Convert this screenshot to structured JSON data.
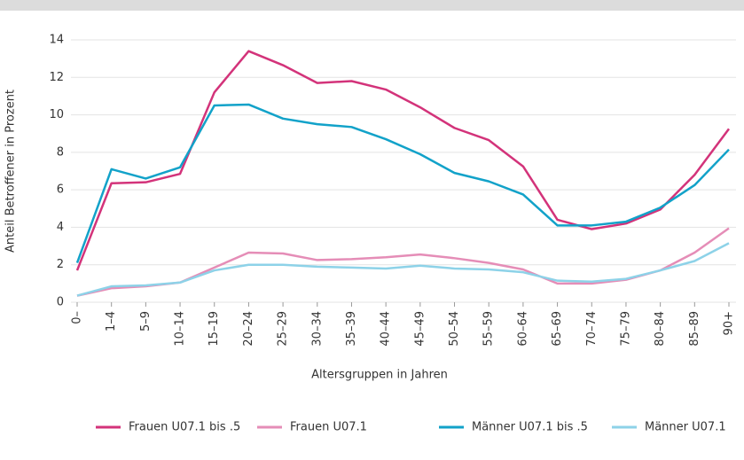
{
  "chart_data": {
    "type": "line",
    "xlabel": "Altersgruppen in Jahren",
    "ylabel": "Anteil Betroffener in Prozent",
    "categories": [
      "0–",
      "1–4",
      "5–9",
      "10–14",
      "15–19",
      "20–24",
      "25–29",
      "30–34",
      "35–39",
      "40–44",
      "45–49",
      "50–54",
      "55–59",
      "60–64",
      "65–69",
      "70–74",
      "75–79",
      "80–84",
      "85–89",
      "90+"
    ],
    "series": [
      {
        "name": "Frauen U07.1 bis .5",
        "color": "#d3337a",
        "values": [
          1.7,
          6.35,
          6.4,
          6.85,
          11.2,
          13.4,
          12.65,
          11.7,
          11.8,
          11.35,
          10.4,
          9.3,
          8.65,
          7.25,
          4.4,
          3.9,
          4.2,
          4.95,
          6.8,
          9.25
        ]
      },
      {
        "name": "Frauen U07.1",
        "color": "#e58db7",
        "values": [
          0.35,
          0.75,
          0.85,
          1.05,
          1.85,
          2.65,
          2.6,
          2.25,
          2.3,
          2.4,
          2.55,
          2.35,
          2.1,
          1.75,
          1.0,
          1.0,
          1.2,
          1.7,
          2.65,
          3.95
        ]
      },
      {
        "name": "Männer U07.1 bis .5",
        "color": "#12a2c9",
        "values": [
          2.1,
          7.1,
          6.6,
          7.2,
          10.5,
          10.55,
          9.8,
          9.5,
          9.35,
          8.7,
          7.9,
          6.9,
          6.45,
          5.75,
          4.1,
          4.1,
          4.3,
          5.05,
          6.25,
          8.15
        ]
      },
      {
        "name": "Männer U07.1",
        "color": "#8dd2e8",
        "values": [
          0.35,
          0.85,
          0.9,
          1.05,
          1.7,
          2.0,
          2.0,
          1.9,
          1.85,
          1.8,
          1.95,
          1.8,
          1.75,
          1.6,
          1.15,
          1.1,
          1.25,
          1.7,
          2.2,
          3.15
        ]
      }
    ],
    "ylim": [
      0,
      14
    ],
    "yticks": [
      0,
      2,
      4,
      6,
      8,
      10,
      12,
      14
    ],
    "grid": true,
    "legend": "bottom"
  }
}
